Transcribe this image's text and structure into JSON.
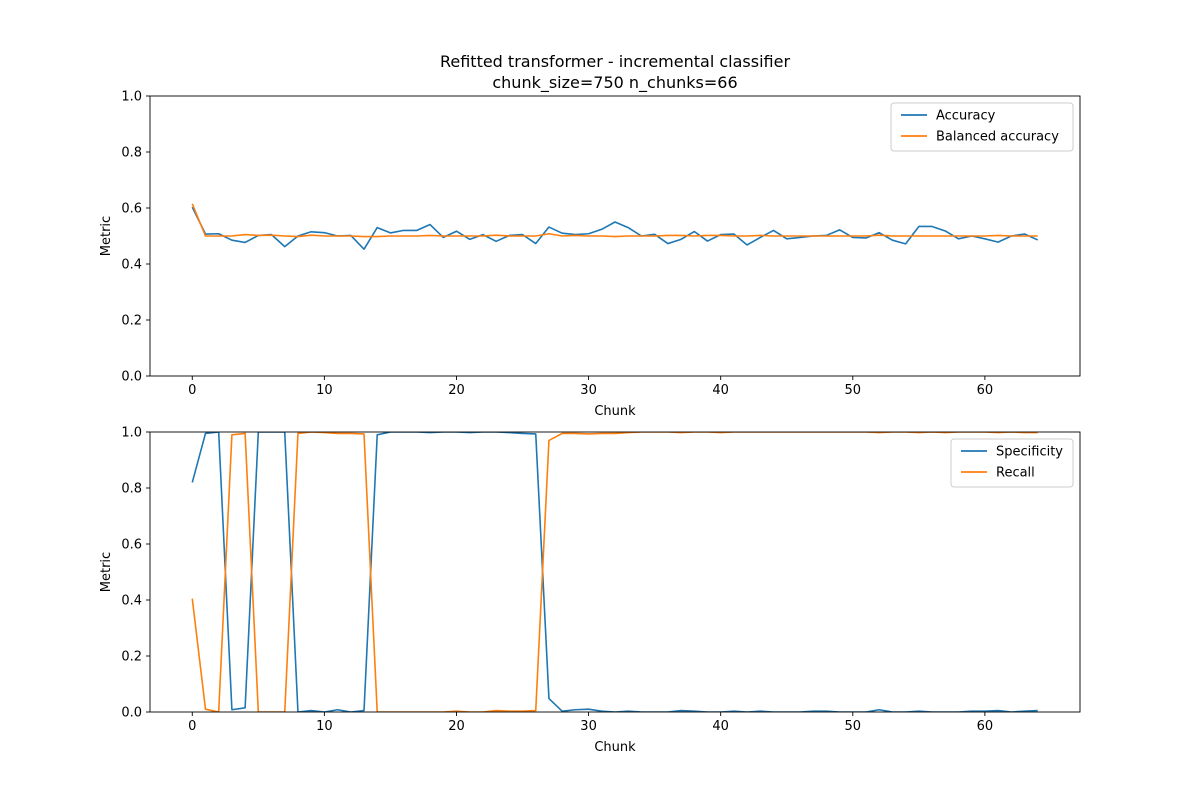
{
  "figure": {
    "title_line1": "Refitted transformer - incremental classifier",
    "title_line2": "chunk_size=750 n_chunks=66"
  },
  "chart_data": [
    {
      "type": "line",
      "xlabel": "Chunk",
      "ylabel": "Metric",
      "xlim": [
        -3.2,
        67.2
      ],
      "ylim": [
        0,
        1
      ],
      "xticks": [
        0,
        10,
        20,
        30,
        40,
        50,
        60
      ],
      "yticks": [
        "0.0",
        "0.2",
        "0.4",
        "0.6",
        "0.8",
        "1.0"
      ],
      "grid": false,
      "legend": "upper right",
      "series": [
        {
          "name": "Accuracy",
          "color": "#1f77b4",
          "values": [
            0.603,
            0.507,
            0.508,
            0.485,
            0.477,
            0.502,
            0.505,
            0.462,
            0.5,
            0.515,
            0.512,
            0.5,
            0.502,
            0.453,
            0.53,
            0.511,
            0.52,
            0.52,
            0.541,
            0.495,
            0.517,
            0.488,
            0.505,
            0.481,
            0.502,
            0.505,
            0.473,
            0.532,
            0.51,
            0.505,
            0.508,
            0.524,
            0.55,
            0.53,
            0.5,
            0.506,
            0.473,
            0.488,
            0.516,
            0.482,
            0.505,
            0.507,
            0.468,
            0.495,
            0.52,
            0.49,
            0.495,
            0.5,
            0.502,
            0.522,
            0.495,
            0.493,
            0.512,
            0.485,
            0.472,
            0.534,
            0.534,
            0.518,
            0.49,
            0.5,
            0.49,
            0.478,
            0.5,
            0.507,
            0.486
          ]
        },
        {
          "name": "Balanced accuracy",
          "color": "#ff7f0e",
          "values": [
            0.615,
            0.5,
            0.5,
            0.5,
            0.505,
            0.502,
            0.503,
            0.5,
            0.498,
            0.503,
            0.5,
            0.5,
            0.5,
            0.498,
            0.498,
            0.5,
            0.5,
            0.5,
            0.502,
            0.5,
            0.5,
            0.5,
            0.5,
            0.503,
            0.5,
            0.5,
            0.5,
            0.508,
            0.5,
            0.502,
            0.5,
            0.5,
            0.498,
            0.5,
            0.5,
            0.5,
            0.502,
            0.502,
            0.5,
            0.502,
            0.502,
            0.5,
            0.5,
            0.502,
            0.5,
            0.5,
            0.5,
            0.5,
            0.5,
            0.5,
            0.5,
            0.5,
            0.503,
            0.5,
            0.5,
            0.5,
            0.5,
            0.5,
            0.5,
            0.5,
            0.5,
            0.502,
            0.5,
            0.5,
            0.5
          ]
        }
      ]
    },
    {
      "type": "line",
      "xlabel": "Chunk",
      "ylabel": "Metric",
      "xlim": [
        -3.2,
        67.2
      ],
      "ylim": [
        0,
        1
      ],
      "xticks": [
        0,
        10,
        20,
        30,
        40,
        50,
        60
      ],
      "yticks": [
        "0.0",
        "0.2",
        "0.4",
        "0.6",
        "0.8",
        "1.0"
      ],
      "grid": false,
      "legend": "upper right",
      "series": [
        {
          "name": "Specificity",
          "color": "#1f77b4",
          "values": [
            0.82,
            0.995,
            1.0,
            0.008,
            0.015,
            1.0,
            1.0,
            1.0,
            0.0,
            0.005,
            0.0,
            0.008,
            0.0,
            0.005,
            0.99,
            1.0,
            1.0,
            1.0,
            0.998,
            1.0,
            1.0,
            0.998,
            1.0,
            1.0,
            0.998,
            0.995,
            0.993,
            0.048,
            0.003,
            0.008,
            0.01,
            0.003,
            0.0,
            0.003,
            0.0,
            0.0,
            0.0,
            0.005,
            0.003,
            0.0,
            0.0,
            0.003,
            0.0,
            0.003,
            0.0,
            0.0,
            0.0,
            0.003,
            0.003,
            0.0,
            0.0,
            0.0,
            0.008,
            0.0,
            0.0,
            0.003,
            0.0,
            0.0,
            0.0,
            0.003,
            0.003,
            0.005,
            0.0,
            0.003,
            0.005
          ]
        },
        {
          "name": "Recall",
          "color": "#ff7f0e",
          "values": [
            0.405,
            0.01,
            0.0,
            0.99,
            0.995,
            0.0,
            0.0,
            0.0,
            0.995,
            1.0,
            0.998,
            0.995,
            0.995,
            0.993,
            0.0,
            0.0,
            0.0,
            0.0,
            0.0,
            0.0,
            0.003,
            0.0,
            0.0,
            0.005,
            0.003,
            0.003,
            0.005,
            0.97,
            0.995,
            0.995,
            0.993,
            0.995,
            0.995,
            0.998,
            1.0,
            1.0,
            1.0,
            0.998,
            1.0,
            1.0,
            0.998,
            1.0,
            1.0,
            1.0,
            1.0,
            1.0,
            1.0,
            1.0,
            1.0,
            1.0,
            1.0,
            1.0,
            0.998,
            1.0,
            1.0,
            0.998,
            1.0,
            0.998,
            1.0,
            1.0,
            1.0,
            0.998,
            1.0,
            0.998,
            0.998
          ]
        }
      ]
    }
  ]
}
